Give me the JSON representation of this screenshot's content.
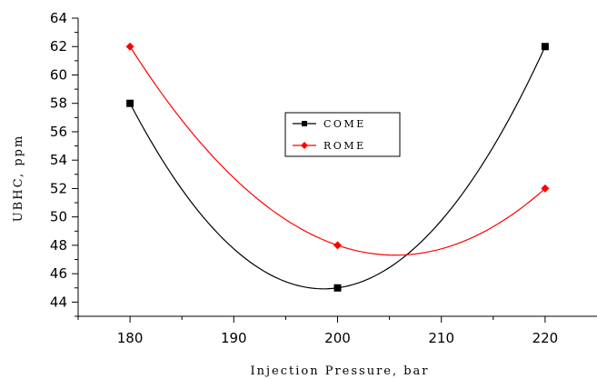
{
  "chart_data": {
    "type": "line",
    "xlabel": "Injection Pressure, bar",
    "ylabel": "UBHC, ppm",
    "xlim": [
      175,
      225
    ],
    "ylim": [
      43,
      64
    ],
    "x_ticks": [
      180,
      190,
      200,
      210,
      220
    ],
    "y_ticks": [
      44,
      46,
      48,
      50,
      52,
      54,
      56,
      58,
      60,
      62,
      64
    ],
    "x_tick_labels": [
      "180",
      "190",
      "200",
      "210",
      "220"
    ],
    "y_tick_labels": [
      "44",
      "46",
      "48",
      "50",
      "52",
      "54",
      "56",
      "58",
      "60",
      "62",
      "64"
    ],
    "grid": false,
    "legend_position": "center",
    "series": [
      {
        "name": "COME",
        "color": "#000000",
        "marker": "square",
        "x": [
          180,
          200,
          220
        ],
        "y": [
          58,
          45,
          62
        ]
      },
      {
        "name": "ROME",
        "color": "#ff0000",
        "marker": "diamond",
        "x": [
          180,
          200,
          220
        ],
        "y": [
          62,
          48,
          52
        ]
      }
    ]
  }
}
